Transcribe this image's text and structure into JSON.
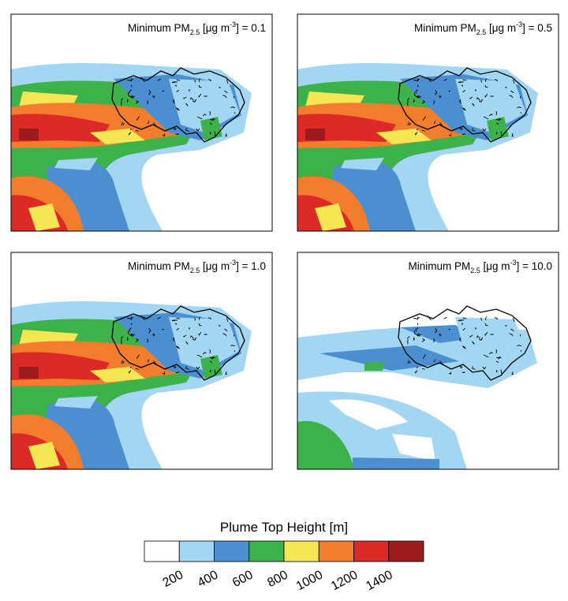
{
  "panels": [
    {
      "title": {
        "prefix": "Minimum PM",
        "subscript": "2.5",
        "unit": " [μg m",
        "superscript": "-3",
        "suffix": "] = 0.1"
      }
    },
    {
      "title": {
        "prefix": "Minimum PM",
        "subscript": "2.5",
        "unit": " [μg m",
        "superscript": "-3",
        "suffix": "] = 0.5"
      }
    },
    {
      "title": {
        "prefix": "Minimum PM",
        "subscript": "2.5",
        "unit": " [μg m",
        "superscript": "-3",
        "suffix": "] = 1.0"
      }
    },
    {
      "title": {
        "prefix": "Minimum PM",
        "subscript": "2.5",
        "unit": " [μg m",
        "superscript": "-3",
        "suffix": "] = 10.0"
      }
    }
  ],
  "colorbar": {
    "label": "Plume Top Height [m]",
    "colors": [
      "#ffffff",
      "#a3d6f2",
      "#4b8fd1",
      "#3db24a",
      "#f6e654",
      "#f17d2d",
      "#de2a26",
      "#9c1b1d"
    ],
    "ticks": [
      200,
      400,
      600,
      800,
      1000,
      1200,
      1400
    ]
  }
}
